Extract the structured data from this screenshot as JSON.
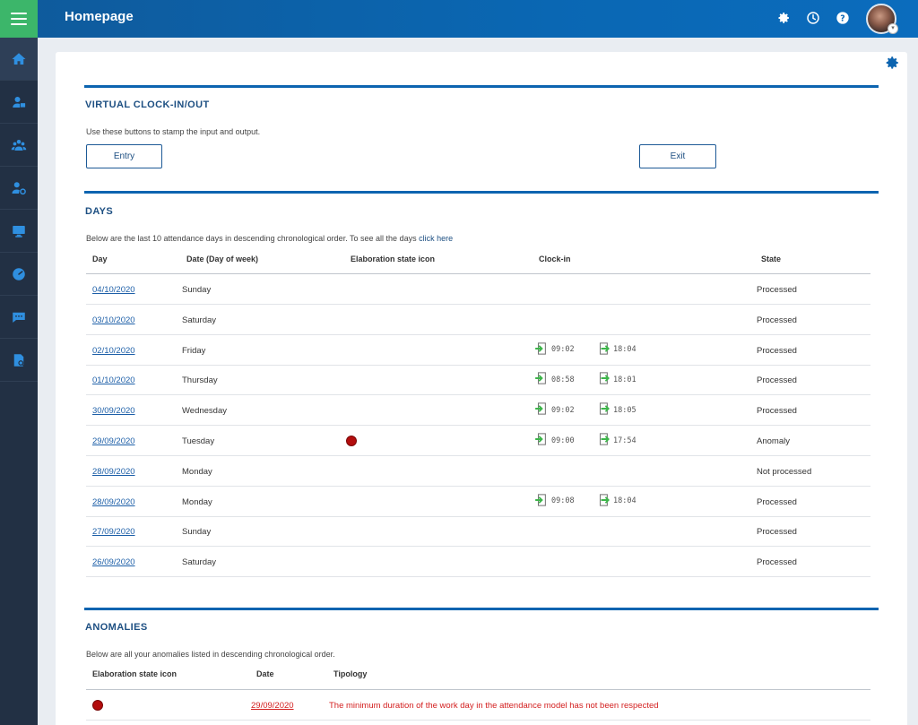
{
  "header": {
    "title": "Homepage"
  },
  "icons": {
    "menu": "menu-icon",
    "settings": "gear-icon",
    "history": "clock-icon",
    "help": "help-icon",
    "sidebar": [
      "home-icon",
      "users-badge-icon",
      "group-icon",
      "user-settings-icon",
      "monitor-icon",
      "dashboard-icon",
      "chat-icon",
      "report-icon"
    ]
  },
  "colors": {
    "accent": "#0c64b0",
    "menu_green": "#3cb66a",
    "sidebar": "#223044",
    "anomaly": "#b30d0d",
    "error_text": "#d32020"
  },
  "clock_section": {
    "title": "VIRTUAL CLOCK-IN/OUT",
    "description": "Use these buttons to stamp the input and output.",
    "entry_label": "Entry",
    "exit_label": "Exit"
  },
  "days_section": {
    "title": "DAYS",
    "description": "Below are the last 10 attendance days in descending chronological order. To see all the days ",
    "link_text": "click here",
    "columns": {
      "day": "Day",
      "date": "Date (Day of week)",
      "icon": "Elaboration state icon",
      "clockin": "Clock-in",
      "state": "State"
    },
    "rows": [
      {
        "day": "04/10/2020",
        "weekday": "Sunday",
        "anomaly": false,
        "in": "",
        "out": "",
        "state": "Processed"
      },
      {
        "day": "03/10/2020",
        "weekday": "Saturday",
        "anomaly": false,
        "in": "",
        "out": "",
        "state": "Processed"
      },
      {
        "day": "02/10/2020",
        "weekday": "Friday",
        "anomaly": false,
        "in": "09:02",
        "out": "18:04",
        "state": "Processed"
      },
      {
        "day": "01/10/2020",
        "weekday": "Thursday",
        "anomaly": false,
        "in": "08:58",
        "out": "18:01",
        "state": "Processed"
      },
      {
        "day": "30/09/2020",
        "weekday": "Wednesday",
        "anomaly": false,
        "in": "09:02",
        "out": "18:05",
        "state": "Processed"
      },
      {
        "day": "29/09/2020",
        "weekday": "Tuesday",
        "anomaly": true,
        "in": "09:00",
        "out": "17:54",
        "state": "Anomaly"
      },
      {
        "day": "28/09/2020",
        "weekday": "Monday",
        "anomaly": false,
        "in": "",
        "out": "",
        "state": "Not processed"
      },
      {
        "day": "28/09/2020",
        "weekday": "Monday",
        "anomaly": false,
        "in": "09:08",
        "out": "18:04",
        "state": "Processed"
      },
      {
        "day": "27/09/2020",
        "weekday": "Sunday",
        "anomaly": false,
        "in": "",
        "out": "",
        "state": "Processed"
      },
      {
        "day": "26/09/2020",
        "weekday": "Saturday",
        "anomaly": false,
        "in": "",
        "out": "",
        "state": "Processed"
      }
    ]
  },
  "anomalies_section": {
    "title": "ANOMALIES",
    "description": "Below are all your anomalies listed in descending chronological order.",
    "columns": {
      "icon": "Elaboration state icon",
      "date": "Date",
      "tipology": "Tipology"
    },
    "rows": [
      {
        "date": "29/09/2020",
        "tipology": "The minimum duration of the work day in the attendance model has not been respected"
      }
    ]
  }
}
